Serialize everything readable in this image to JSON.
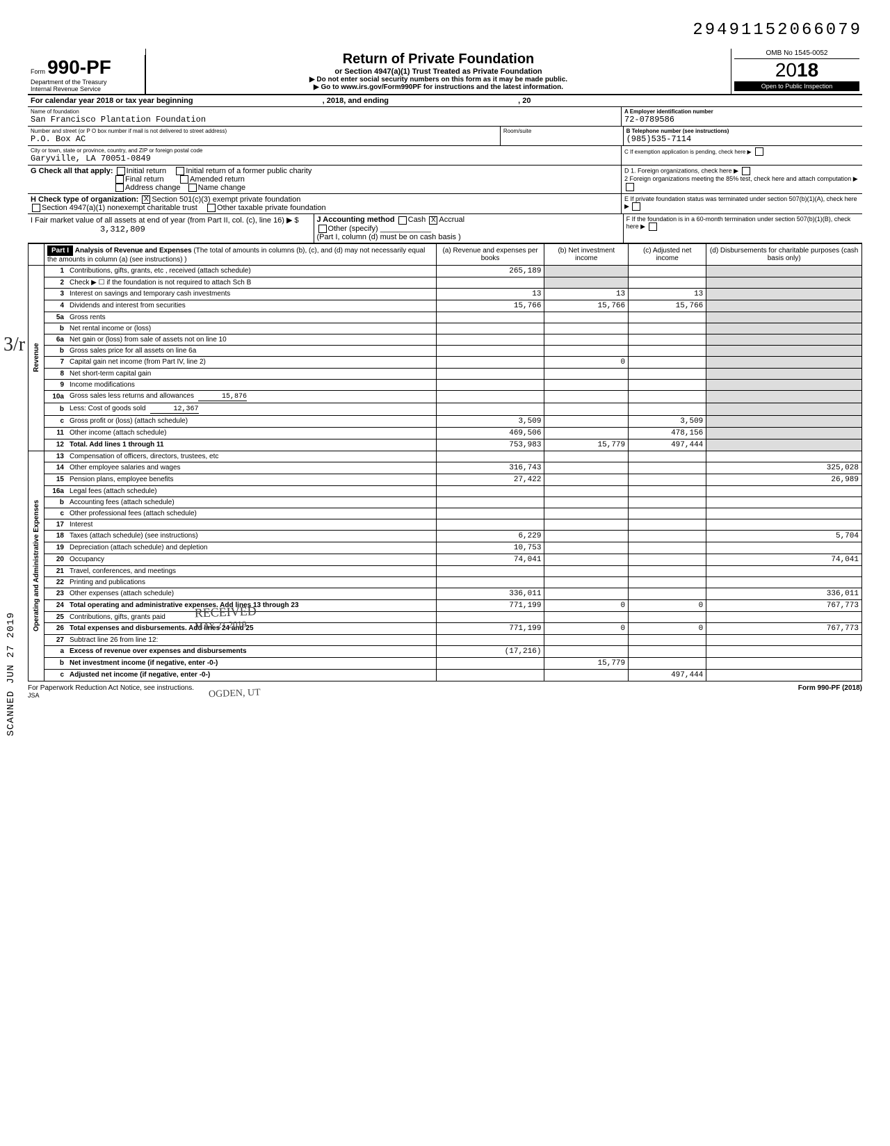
{
  "doc_number": "29491152066079",
  "header": {
    "form_prefix": "Form",
    "form_number": "990-PF",
    "dept": "Department of the Treasury",
    "irs": "Internal Revenue Service",
    "title": "Return of Private Foundation",
    "subtitle": "or Section 4947(a)(1) Trust Treated as Private Foundation",
    "instr1": "▶ Do not enter social security numbers on this form as it may be made public.",
    "instr2": "▶ Go to www.irs.gov/Form990PF for instructions and the latest information.",
    "omb": "OMB No 1545-0052",
    "year_prefix": "20",
    "year_bold": "18",
    "open_public": "Open to Public Inspection"
  },
  "cal_year": {
    "label": "For calendar year 2018 or tax year beginning",
    "mid": ", 2018, and ending",
    "end": ", 20"
  },
  "foundation": {
    "name_label": "Name of foundation",
    "name": "San Francisco Plantation Foundation",
    "ein_label": "A  Employer identification number",
    "ein": "72-0789586",
    "addr_label": "Number and street (or P O box number if mail is not delivered to street address)",
    "room_label": "Room/suite",
    "addr": "P.O. Box AC",
    "tel_label": "B  Telephone number (see instructions)",
    "tel": "(985)535-7114",
    "city_label": "City or town, state or province, country, and ZIP or foreign postal code",
    "city": "Garyville, LA   70051-0849",
    "c_label": "C  If exemption application is pending, check here ▶"
  },
  "section_g": {
    "label": "G  Check all that apply:",
    "initial": "Initial return",
    "initial_former": "Initial return of a former public charity",
    "final": "Final return",
    "amended": "Amended return",
    "addr_change": "Address change",
    "name_change": "Name change"
  },
  "section_d": {
    "d1": "D  1. Foreign organizations, check here",
    "d2": "2 Foreign organizations meeting the 85% test, check here and attach computation",
    "e": "E  If private foundation status was terminated under section 507(b)(1)(A), check here",
    "f": "F  If the foundation is in a 60-month termination under section 507(b)(1)(B), check here"
  },
  "section_h": {
    "label": "H  Check type of organization:",
    "opt1": "Section 501(c)(3) exempt private foundation",
    "opt2": "Section 4947(a)(1) nonexempt charitable trust",
    "opt3": "Other taxable private foundation"
  },
  "section_i": {
    "label": "I   Fair market value of all assets at end of year (from Part II, col. (c), line 16) ▶ $",
    "value": "3,312,809"
  },
  "section_j": {
    "label": "J  Accounting method",
    "cash": "Cash",
    "accrual": "Accrual",
    "other": "Other (specify)",
    "note": "(Part I, column (d) must be on cash basis )"
  },
  "part1": {
    "badge": "Part I",
    "title": "Analysis of Revenue and Expenses",
    "subtitle": "(The total of amounts in columns (b), (c), and (d) may not necessarily equal the amounts in column (a) (see instructions) )",
    "col_a": "(a) Revenue and expenses per books",
    "col_b": "(b) Net investment income",
    "col_c": "(c) Adjusted net income",
    "col_d": "(d) Disbursements for charitable purposes (cash basis only)"
  },
  "side_labels": {
    "revenue": "Revenue",
    "expenses": "Operating and Administrative Expenses"
  },
  "rows": [
    {
      "n": "1",
      "desc": "Contributions, gifts, grants, etc , received (attach schedule)",
      "a": "265,189",
      "b": "",
      "c": "",
      "d": ""
    },
    {
      "n": "2",
      "desc": "Check ▶ ☐ if the foundation is not required to attach Sch B",
      "a": "",
      "b": "",
      "c": "",
      "d": ""
    },
    {
      "n": "3",
      "desc": "Interest on savings and temporary cash investments",
      "a": "13",
      "b": "13",
      "c": "13",
      "d": ""
    },
    {
      "n": "4",
      "desc": "Dividends and interest from securities",
      "a": "15,766",
      "b": "15,766",
      "c": "15,766",
      "d": ""
    },
    {
      "n": "5a",
      "desc": "Gross rents",
      "a": "",
      "b": "",
      "c": "",
      "d": ""
    },
    {
      "n": "b",
      "desc": "Net rental income or (loss)",
      "a": "",
      "b": "",
      "c": "",
      "d": ""
    },
    {
      "n": "6a",
      "desc": "Net gain or (loss) from sale of assets not on line 10",
      "a": "",
      "b": "",
      "c": "",
      "d": ""
    },
    {
      "n": "b",
      "desc": "Gross sales price for all assets on line 6a",
      "a": "",
      "b": "",
      "c": "",
      "d": ""
    },
    {
      "n": "7",
      "desc": "Capital gain net income (from Part IV, line 2)",
      "a": "",
      "b": "0",
      "c": "",
      "d": ""
    },
    {
      "n": "8",
      "desc": "Net short-term capital gain",
      "a": "",
      "b": "",
      "c": "",
      "d": ""
    },
    {
      "n": "9",
      "desc": "Income modifications",
      "a": "",
      "b": "",
      "c": "",
      "d": ""
    },
    {
      "n": "10a",
      "desc": "Gross sales less returns and allowances",
      "sub": "15,876",
      "a": "",
      "b": "",
      "c": "",
      "d": ""
    },
    {
      "n": "b",
      "desc": "Less: Cost of goods sold",
      "sub": "12,367",
      "a": "",
      "b": "",
      "c": "",
      "d": ""
    },
    {
      "n": "c",
      "desc": "Gross profit or (loss) (attach schedule)",
      "a": "3,509",
      "b": "",
      "c": "3,509",
      "d": ""
    },
    {
      "n": "11",
      "desc": "Other income (attach schedule)",
      "a": "469,506",
      "b": "",
      "c": "478,156",
      "d": ""
    },
    {
      "n": "12",
      "desc": "Total. Add lines 1 through 11",
      "bold": true,
      "a": "753,983",
      "b": "15,779",
      "c": "497,444",
      "d": ""
    },
    {
      "n": "13",
      "desc": "Compensation of officers, directors, trustees, etc",
      "a": "",
      "b": "",
      "c": "",
      "d": ""
    },
    {
      "n": "14",
      "desc": "Other employee salaries and wages",
      "a": "316,743",
      "b": "",
      "c": "",
      "d": "325,028"
    },
    {
      "n": "15",
      "desc": "Pension plans, employee benefits",
      "a": "27,422",
      "b": "",
      "c": "",
      "d": "26,989"
    },
    {
      "n": "16a",
      "desc": "Legal fees (attach schedule)",
      "a": "",
      "b": "",
      "c": "",
      "d": ""
    },
    {
      "n": "b",
      "desc": "Accounting fees (attach schedule)",
      "a": "",
      "b": "",
      "c": "",
      "d": ""
    },
    {
      "n": "c",
      "desc": "Other professional fees (attach schedule)",
      "a": "",
      "b": "",
      "c": "",
      "d": ""
    },
    {
      "n": "17",
      "desc": "Interest",
      "a": "",
      "b": "",
      "c": "",
      "d": ""
    },
    {
      "n": "18",
      "desc": "Taxes (attach schedule) (see instructions)",
      "a": "6,229",
      "b": "",
      "c": "",
      "d": "5,704"
    },
    {
      "n": "19",
      "desc": "Depreciation (attach schedule) and depletion",
      "a": "10,753",
      "b": "",
      "c": "",
      "d": ""
    },
    {
      "n": "20",
      "desc": "Occupancy",
      "a": "74,041",
      "b": "",
      "c": "",
      "d": "74,041"
    },
    {
      "n": "21",
      "desc": "Travel, conferences, and meetings",
      "a": "",
      "b": "",
      "c": "",
      "d": ""
    },
    {
      "n": "22",
      "desc": "Printing and publications",
      "a": "",
      "b": "",
      "c": "",
      "d": ""
    },
    {
      "n": "23",
      "desc": "Other expenses (attach schedule)",
      "a": "336,011",
      "b": "",
      "c": "",
      "d": "336,011"
    },
    {
      "n": "24",
      "desc": "Total operating and administrative expenses. Add lines 13 through 23",
      "bold": true,
      "a": "771,199",
      "b": "0",
      "c": "0",
      "d": "767,773"
    },
    {
      "n": "25",
      "desc": "Contributions, gifts, grants paid",
      "a": "",
      "b": "",
      "c": "",
      "d": ""
    },
    {
      "n": "26",
      "desc": "Total expenses and disbursements. Add lines 24 and 25",
      "bold": true,
      "a": "771,199",
      "b": "0",
      "c": "0",
      "d": "767,773"
    },
    {
      "n": "27",
      "desc": "Subtract line 26 from line 12:",
      "a": "",
      "b": "",
      "c": "",
      "d": ""
    },
    {
      "n": "a",
      "desc": "Excess of revenue over expenses and disbursements",
      "bold": true,
      "a": "(17,216)",
      "b": "",
      "c": "",
      "d": ""
    },
    {
      "n": "b",
      "desc": "Net investment income (if negative, enter -0-)",
      "bold": true,
      "a": "",
      "b": "15,779",
      "c": "",
      "d": ""
    },
    {
      "n": "c",
      "desc": "Adjusted net income (if negative, enter -0-)",
      "bold": true,
      "a": "",
      "b": "",
      "c": "497,444",
      "d": ""
    }
  ],
  "stamps": {
    "received": "RECEIVED",
    "received_date": "MAY 21 2019",
    "ogden": "OGDEN, UT",
    "irs_osc": "IRS-OSC",
    "scanned": "SCANNED JUN 27 2019",
    "handwrite_left": "3/r"
  },
  "footer": {
    "left": "For Paperwork Reduction Act Notice, see instructions.",
    "jsa": "JSA",
    "right": "Form 990-PF (2018)"
  }
}
